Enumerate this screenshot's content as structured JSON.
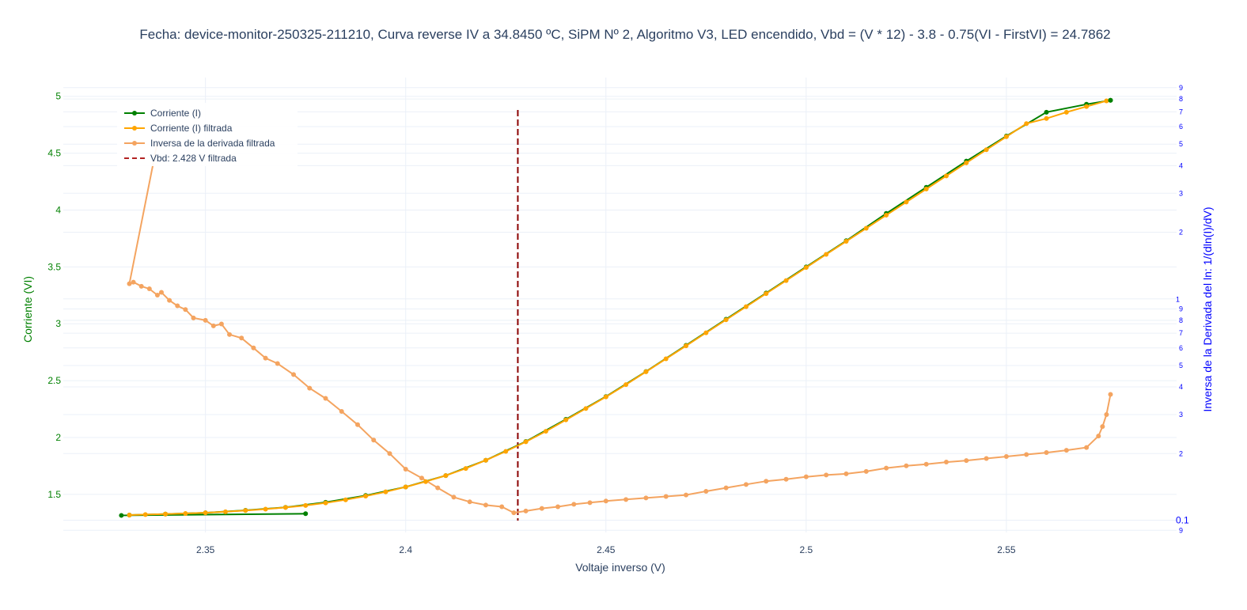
{
  "chart_data": {
    "type": "line",
    "title": "Fecha: device-monitor-250325-211210, Curva reverse IV a 34.8450 ºC, SiPM Nº 2, Algoritmo V3, LED encendido,  Vbd = (V * 12) - 3.8 - 0.75(VI - FirstVI) = 24.7862",
    "xlabel": "Voltaje inverso (V)",
    "ylabel": "Corriente (VI)",
    "y2label": "Inversa de la Derivada del ln: 1/(dln(I)/dV)",
    "xlim": [
      2.3145,
      2.5925
    ],
    "ylim": [
      1.165,
      5.165
    ],
    "y2_scale": "log",
    "y2lim": [
      0.088,
      10.0
    ],
    "x_ticks": [
      "2.35",
      "2.4",
      "2.45",
      "2.5",
      "2.55"
    ],
    "x_tick_values": [
      2.35,
      2.4,
      2.45,
      2.5,
      2.55
    ],
    "y_ticks": [
      "1.5",
      "2",
      "2.5",
      "3",
      "3.5",
      "4",
      "4.5",
      "5"
    ],
    "y_tick_values": [
      1.5,
      2,
      2.5,
      3,
      3.5,
      4,
      4.5,
      5
    ],
    "y2_major_ticks": [
      {
        "value": 0.1,
        "label": "0.1"
      },
      {
        "value": 1,
        "label": "1"
      }
    ],
    "y2_minor_ticks": [
      {
        "value": 0.09,
        "label": "9"
      },
      {
        "value": 0.2,
        "label": "2"
      },
      {
        "value": 0.3,
        "label": "3"
      },
      {
        "value": 0.4,
        "label": "4"
      },
      {
        "value": 0.5,
        "label": "5"
      },
      {
        "value": 0.6,
        "label": "6"
      },
      {
        "value": 0.7,
        "label": "7"
      },
      {
        "value": 0.8,
        "label": "8"
      },
      {
        "value": 0.9,
        "label": "9"
      },
      {
        "value": 2,
        "label": "2"
      },
      {
        "value": 3,
        "label": "3"
      },
      {
        "value": 4,
        "label": "4"
      },
      {
        "value": 5,
        "label": "5"
      },
      {
        "value": 6,
        "label": "6"
      },
      {
        "value": 7,
        "label": "7"
      },
      {
        "value": 8,
        "label": "8"
      },
      {
        "value": 9,
        "label": "9"
      }
    ],
    "grid": true,
    "legend_position": "top-left",
    "vbd_value": 2.428,
    "series": [
      {
        "name": "Corriente (I)",
        "color": "#008000",
        "axis": "y",
        "mode": "lines+markers",
        "x": [
          2.329,
          2.375,
          2.331,
          2.34,
          2.35,
          2.36,
          2.37,
          2.38,
          2.39,
          2.4,
          2.41,
          2.42,
          2.43,
          2.44,
          2.45,
          2.46,
          2.47,
          2.48,
          2.49,
          2.5,
          2.51,
          2.52,
          2.53,
          2.54,
          2.55,
          2.56,
          2.57,
          2.576
        ],
        "y": [
          1.315,
          1.33,
          1.318,
          1.327,
          1.338,
          1.36,
          1.386,
          1.43,
          1.49,
          1.565,
          1.665,
          1.8,
          1.965,
          2.16,
          2.36,
          2.58,
          2.81,
          3.04,
          3.27,
          3.5,
          3.73,
          3.97,
          4.2,
          4.43,
          4.65,
          4.86,
          4.93,
          4.965
        ]
      },
      {
        "name": "Corriente (I) filtrada",
        "color": "#ffa500",
        "axis": "y",
        "mode": "lines+markers",
        "x": [
          2.331,
          2.335,
          2.34,
          2.345,
          2.35,
          2.355,
          2.36,
          2.365,
          2.37,
          2.375,
          2.38,
          2.385,
          2.39,
          2.395,
          2.4,
          2.405,
          2.41,
          2.415,
          2.42,
          2.425,
          2.43,
          2.435,
          2.44,
          2.445,
          2.45,
          2.455,
          2.46,
          2.465,
          2.47,
          2.475,
          2.48,
          2.485,
          2.49,
          2.495,
          2.5,
          2.505,
          2.51,
          2.515,
          2.52,
          2.525,
          2.53,
          2.535,
          2.54,
          2.545,
          2.55,
          2.555,
          2.56,
          2.565,
          2.57,
          2.575
        ],
        "y": [
          1.318,
          1.322,
          1.327,
          1.332,
          1.338,
          1.347,
          1.358,
          1.37,
          1.385,
          1.402,
          1.425,
          1.452,
          1.485,
          1.522,
          1.565,
          1.612,
          1.665,
          1.728,
          1.8,
          1.878,
          1.962,
          2.055,
          2.155,
          2.255,
          2.357,
          2.465,
          2.578,
          2.692,
          2.806,
          2.921,
          3.035,
          3.15,
          3.265,
          3.38,
          3.495,
          3.61,
          3.725,
          3.84,
          3.955,
          4.07,
          4.185,
          4.3,
          4.415,
          4.53,
          4.645,
          4.76,
          4.805,
          4.86,
          4.91,
          4.96
        ]
      },
      {
        "name": "Inversa de la derivada filtrada",
        "color": "#f4a460",
        "axis": "y2",
        "mode": "lines+markers",
        "x": [
          2.331,
          2.332,
          2.334,
          2.336,
          2.338,
          2.339,
          2.341,
          2.343,
          2.345,
          2.347,
          2.35,
          2.352,
          2.354,
          2.356,
          2.359,
          2.362,
          2.365,
          2.368,
          2.372,
          2.376,
          2.38,
          2.384,
          2.388,
          2.392,
          2.396,
          2.4,
          2.404,
          2.408,
          2.412,
          2.416,
          2.42,
          2.424,
          2.427,
          2.43,
          2.434,
          2.438,
          2.442,
          2.446,
          2.45,
          2.455,
          2.46,
          2.465,
          2.47,
          2.475,
          2.48,
          2.485,
          2.49,
          2.495,
          2.5,
          2.505,
          2.51,
          2.515,
          2.52,
          2.525,
          2.53,
          2.535,
          2.54,
          2.545,
          2.55,
          2.555,
          2.56,
          2.565,
          2.57,
          2.573,
          2.574,
          2.575,
          2.576
        ],
        "y": [
          1.17,
          1.19,
          1.14,
          1.11,
          1.04,
          1.07,
          0.985,
          0.93,
          0.895,
          0.82,
          0.8,
          0.755,
          0.77,
          0.69,
          0.665,
          0.6,
          0.54,
          0.51,
          0.455,
          0.395,
          0.355,
          0.31,
          0.27,
          0.23,
          0.2,
          0.17,
          0.155,
          0.14,
          0.127,
          0.121,
          0.117,
          0.115,
          0.108,
          0.11,
          0.113,
          0.115,
          0.118,
          0.12,
          0.122,
          0.124,
          0.126,
          0.128,
          0.13,
          0.135,
          0.14,
          0.145,
          0.15,
          0.153,
          0.157,
          0.16,
          0.162,
          0.166,
          0.172,
          0.176,
          0.179,
          0.183,
          0.186,
          0.19,
          0.194,
          0.198,
          0.202,
          0.207,
          0.213,
          0.24,
          0.265,
          0.3,
          0.37
        ]
      }
    ],
    "extra_segment": {
      "x": [
        2.331,
        2.338
      ],
      "y2": [
        1.17,
        5.1
      ]
    }
  },
  "legend": {
    "items": [
      {
        "label": "Corriente (I)",
        "color": "#008000",
        "style": "line-marker"
      },
      {
        "label": "Corriente (I) filtrada",
        "color": "#ffa500",
        "style": "line-marker"
      },
      {
        "label": "Inversa de la derivada filtrada",
        "color": "#f4a460",
        "style": "line-marker"
      },
      {
        "label": "Vbd: 2.428 V filtrada",
        "color": "#b22222",
        "style": "dash"
      }
    ]
  }
}
